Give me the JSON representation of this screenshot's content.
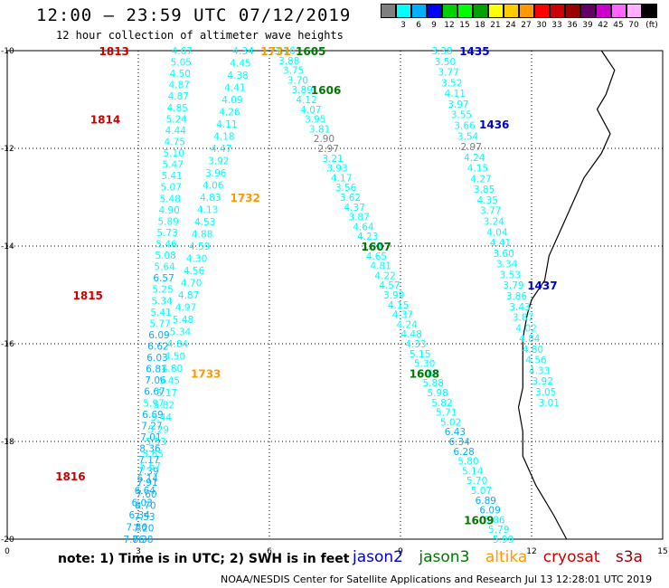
{
  "header": {
    "title": "12:00 — 23:59 UTC 07/12/2019",
    "subtitle": "12 hour collection of altimeter wave heights"
  },
  "color_legend": {
    "unit_label": "(ft)",
    "bins": [
      {
        "label": "",
        "color": "#7f7f7f"
      },
      {
        "label": "3",
        "color": "#00ffff"
      },
      {
        "label": "6",
        "color": "#00b0ff"
      },
      {
        "label": "9",
        "color": "#0000ff"
      },
      {
        "label": "12",
        "color": "#00d000"
      },
      {
        "label": "15",
        "color": "#00ff00"
      },
      {
        "label": "18",
        "color": "#00a000"
      },
      {
        "label": "21",
        "color": "#ffff00"
      },
      {
        "label": "24",
        "color": "#ffcc00"
      },
      {
        "label": "27",
        "color": "#ff9900"
      },
      {
        "label": "30",
        "color": "#ff0000"
      },
      {
        "label": "33",
        "color": "#cc0000"
      },
      {
        "label": "36",
        "color": "#990000"
      },
      {
        "label": "39",
        "color": "#660066"
      },
      {
        "label": "42",
        "color": "#cc00cc"
      },
      {
        "label": "45",
        "color": "#ff66ff"
      },
      {
        "label": "70",
        "color": "#ffb0ff"
      },
      {
        "label": "",
        "color": "#000000"
      }
    ]
  },
  "map": {
    "x_ticks": [
      "0",
      "3",
      "6",
      "9",
      "12",
      "15"
    ],
    "y_ticks": [
      "-10",
      "-12",
      "-14",
      "-16",
      "-18",
      "-20"
    ],
    "sat_colors": {
      "jason2": "#0000cc",
      "jason3": "#007700",
      "altika": "#ff9900",
      "cryosat": "#cc0000",
      "s3a": "#990000"
    },
    "tracks": [
      {
        "name": "track-a",
        "start": [
          4.0,
          -10.0
        ],
        "end": [
          3.1,
          -20.0
        ],
        "values": [
          "4.67",
          "5.05",
          "4.50",
          "4.87",
          "4.87",
          "4.85",
          "5.24",
          "4.44",
          "4.75",
          "5.10",
          "5.47",
          "5.41",
          "5.07",
          "5.48",
          "4.90",
          "5.89",
          "5.73",
          "5.46",
          "5.08",
          "5.64",
          "6.57",
          "5.25",
          "5.34",
          "5.41",
          "5.77",
          "6.09",
          "6.62",
          "6.03",
          "6.81",
          "7.06",
          "6.67",
          "5.97",
          "6.69",
          "7.27",
          "7.01",
          "8.36",
          "7.17",
          "7.39",
          "7.91",
          "7.60",
          "8.70",
          "7.53",
          "7.20",
          "7.38"
        ]
      },
      {
        "name": "track-b",
        "start": [
          5.4,
          -10.0
        ],
        "end": [
          2.9,
          -20.0
        ],
        "values": [
          "4.34",
          "4.45",
          "4.38",
          "4.41",
          "4.09",
          "4.26",
          "4.11",
          "4.18",
          "4.47",
          "3.92",
          "3.96",
          "4.06",
          "4.83",
          "4.13",
          "4.53",
          "4.88",
          "4.59",
          "4.30",
          "4.56",
          "4.70",
          "4.87",
          "4.97",
          "5.48",
          "5.34",
          "4.84",
          "4.50",
          "4.80",
          "5.45",
          "5.17",
          "5.82",
          "5.44",
          "5.29",
          "5.53",
          "5.65",
          "5.67",
          "6.14",
          "6.64",
          "6.03",
          "6.34",
          "7.86",
          "7.86"
        ]
      },
      {
        "name": "track-c",
        "start": [
          6.35,
          -10.0
        ],
        "end": [
          11.35,
          -20.0
        ],
        "values": [
          "3.76",
          "3.88",
          "3.75",
          "3.70",
          "3.89",
          "4.12",
          "4.07",
          "3.95",
          "3.81",
          "2.90",
          "2.97",
          "3.21",
          "3.93",
          "4.17",
          "3.56",
          "3.62",
          "4.37",
          "3.87",
          "4.64",
          "4.23",
          "3.87",
          "4.65",
          "4.81",
          "4.22",
          "4.57",
          "3.99",
          "4.15",
          "4.37",
          "4.24",
          "4.48",
          "4.33",
          "5.15",
          "5.30",
          "5.65",
          "5.88",
          "5.98",
          "5.82",
          "5.71",
          "5.02",
          "6.43",
          "6.34",
          "6.28",
          "5.80",
          "5.14",
          "5.70",
          "5.07",
          "6.89",
          "6.09",
          "5.86",
          "5.79",
          "5.99"
        ]
      },
      {
        "name": "track-d",
        "start": [
          9.95,
          -10.0
        ],
        "end": [
          12.4,
          -17.2
        ],
        "values": [
          "3.38",
          "3.50",
          "3.77",
          "3.52",
          "4.11",
          "3.97",
          "3.55",
          "3.66",
          "3.54",
          "2.97",
          "4.24",
          "4.15",
          "4.27",
          "3.85",
          "4.35",
          "3.77",
          "3.24",
          "4.04",
          "4.41",
          "3.60",
          "3.34",
          "3.53",
          "3.79",
          "3.86",
          "3.43",
          "3.87",
          "4.02",
          "4.84",
          "4.80",
          "4.56",
          "4.33",
          "3.92",
          "3.05",
          "3.01"
        ]
      }
    ],
    "pass_labels": [
      {
        "text": "1813",
        "sat": "cryosat",
        "pos": [
          2.1,
          -10.0
        ]
      },
      {
        "text": "1814",
        "sat": "cryosat",
        "pos": [
          1.9,
          -11.4
        ]
      },
      {
        "text": "1815",
        "sat": "cryosat",
        "pos": [
          1.5,
          -15.0
        ]
      },
      {
        "text": "1816",
        "sat": "cryosat",
        "pos": [
          1.1,
          -18.7
        ]
      },
      {
        "text": "1731",
        "sat": "altika",
        "pos": [
          5.8,
          -10.0
        ]
      },
      {
        "text": "1732",
        "sat": "altika",
        "pos": [
          5.1,
          -13.0
        ]
      },
      {
        "text": "1733",
        "sat": "altika",
        "pos": [
          4.2,
          -16.6
        ]
      },
      {
        "text": "1605",
        "sat": "jason3",
        "pos": [
          6.6,
          -10.0
        ]
      },
      {
        "text": "1606",
        "sat": "jason3",
        "pos": [
          6.95,
          -10.8
        ]
      },
      {
        "text": "1607",
        "sat": "jason3",
        "pos": [
          8.1,
          -14.0
        ]
      },
      {
        "text": "1608",
        "sat": "jason3",
        "pos": [
          9.2,
          -16.6
        ]
      },
      {
        "text": "1609",
        "sat": "jason3",
        "pos": [
          10.45,
          -19.6
        ]
      },
      {
        "text": "1435",
        "sat": "jason2",
        "pos": [
          10.35,
          -10.0
        ]
      },
      {
        "text": "1436",
        "sat": "jason2",
        "pos": [
          10.8,
          -11.5
        ]
      },
      {
        "text": "1437",
        "sat": "jason2",
        "pos": [
          11.9,
          -14.8
        ]
      }
    ],
    "coastline": [
      [
        13.6,
        -10.0
      ],
      [
        13.9,
        -10.4
      ],
      [
        13.7,
        -10.9
      ],
      [
        13.5,
        -11.2
      ],
      [
        13.8,
        -11.7
      ],
      [
        13.6,
        -12.1
      ],
      [
        13.2,
        -12.6
      ],
      [
        13.0,
        -13.0
      ],
      [
        12.75,
        -13.5
      ],
      [
        12.4,
        -14.2
      ],
      [
        12.3,
        -14.7
      ],
      [
        12.0,
        -15.1
      ],
      [
        11.9,
        -15.4
      ],
      [
        11.8,
        -15.9
      ],
      [
        11.8,
        -16.4
      ],
      [
        11.8,
        -16.9
      ],
      [
        11.7,
        -17.3
      ],
      [
        11.8,
        -17.8
      ],
      [
        11.8,
        -18.3
      ],
      [
        12.1,
        -18.9
      ],
      [
        12.5,
        -19.5
      ],
      [
        12.8,
        -20.0
      ]
    ]
  },
  "note": {
    "text": "note:  1) Time is in UTC;  2) SWH is in feet"
  },
  "sat_legend": {
    "jason2": "jason2",
    "jason3": "jason3",
    "altika": "altika",
    "cryosat": "cryosat",
    "s3a": "s3a"
  },
  "credit": {
    "text": "NOAA/NESDIS Center for Satellite Applications and Research    Jul 13 12:28:01 UTC 2019"
  }
}
